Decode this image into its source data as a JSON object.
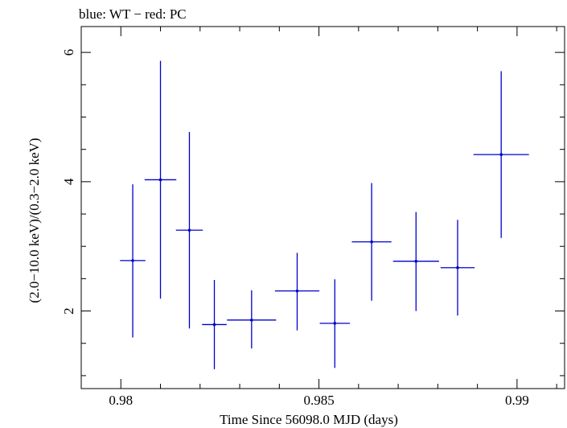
{
  "chart_data": {
    "type": "scatter",
    "title": "blue: WT − red: PC",
    "xlabel": "Time Since 56098.0 MJD (days)",
    "ylabel": "(2.0−10.0 keV)/(0.3−2.0 keV)",
    "xlim": [
      0.979,
      0.9912
    ],
    "ylim": [
      0.8,
      6.4
    ],
    "x_ticks": [
      0.98,
      0.985,
      0.99
    ],
    "x_tick_labels": [
      "0.98",
      "0.985",
      "0.99"
    ],
    "y_ticks": [
      2,
      4,
      6
    ],
    "y_tick_labels": [
      "2",
      "4",
      "6"
    ],
    "grid": false,
    "series": [
      {
        "color": "#0000cc",
        "points": [
          {
            "x": 0.9803,
            "xerr": 0.00032,
            "y": 2.78,
            "ylo": 1.59,
            "yhi": 3.96
          },
          {
            "x": 0.981,
            "xerr": 0.0004,
            "y": 4.03,
            "ylo": 2.19,
            "yhi": 5.87
          },
          {
            "x": 0.98173,
            "xerr": 0.00034,
            "y": 3.25,
            "ylo": 1.73,
            "yhi": 4.77
          },
          {
            "x": 0.98236,
            "xerr": 0.00031,
            "y": 1.79,
            "ylo": 1.1,
            "yhi": 2.48
          },
          {
            "x": 0.9833,
            "xerr": 0.00062,
            "y": 1.86,
            "ylo": 1.42,
            "yhi": 2.32
          },
          {
            "x": 0.98445,
            "xerr": 0.00056,
            "y": 2.31,
            "ylo": 1.7,
            "yhi": 2.9
          },
          {
            "x": 0.9854,
            "xerr": 0.00038,
            "y": 1.81,
            "ylo": 1.12,
            "yhi": 2.49
          },
          {
            "x": 0.98633,
            "xerr": 0.0005,
            "y": 3.07,
            "ylo": 2.16,
            "yhi": 3.98
          },
          {
            "x": 0.98745,
            "xerr": 0.00058,
            "y": 2.77,
            "ylo": 2.0,
            "yhi": 3.53
          },
          {
            "x": 0.9885,
            "xerr": 0.00043,
            "y": 2.67,
            "ylo": 1.93,
            "yhi": 3.41
          },
          {
            "x": 0.9896,
            "xerr": 0.0007,
            "y": 4.42,
            "ylo": 3.13,
            "yhi": 5.71
          }
        ]
      }
    ]
  }
}
